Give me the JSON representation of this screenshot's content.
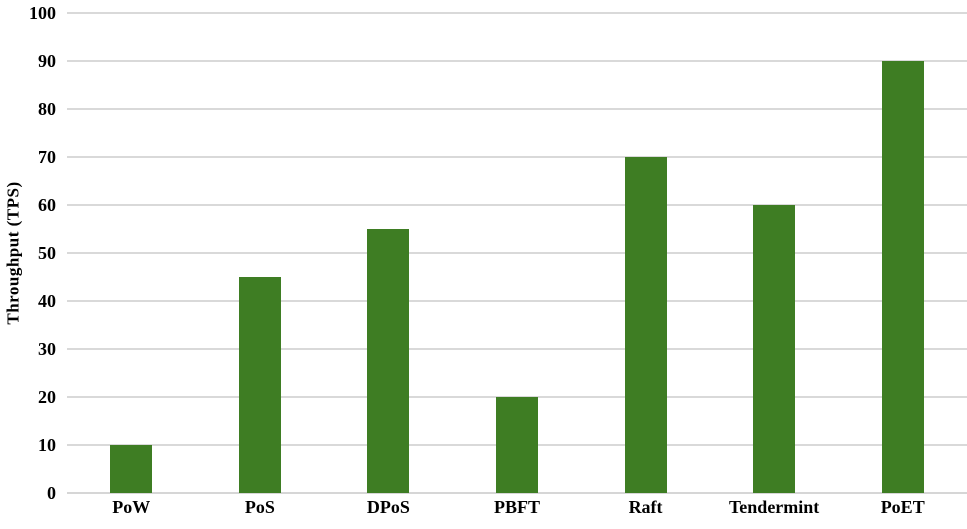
{
  "chart_data": {
    "type": "bar",
    "categories": [
      "PoW",
      "PoS",
      "DPoS",
      "PBFT",
      "Raft",
      "Tendermint",
      "PoET"
    ],
    "values": [
      10,
      45,
      55,
      20,
      70,
      60,
      90
    ],
    "title": "",
    "xlabel": "",
    "ylabel": "Throughput (TPS)",
    "ylim": [
      0,
      100
    ],
    "ytick_step": 10,
    "yticks": [
      0,
      10,
      20,
      30,
      40,
      50,
      60,
      70,
      80,
      90,
      100
    ],
    "grid": true,
    "legend_position": "none",
    "colors": {
      "bar_fill": "#3e7d23",
      "gridline": "#d9d9d9",
      "axis_line": "#d6d6d6",
      "text": "#000000",
      "background": "#ffffff"
    }
  }
}
